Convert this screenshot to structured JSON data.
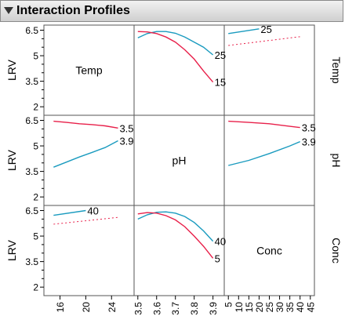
{
  "header": {
    "title": "Interaction Profiles"
  },
  "chart_data": {
    "type": "line",
    "title": "Interaction Profiles",
    "response": "LRV",
    "factors": [
      "Temp",
      "pH",
      "Conc"
    ],
    "colors": {
      "high": "#1a9bbf",
      "low": "#e8204a"
    },
    "row_labels": [
      "Temp",
      "pH",
      "Conc"
    ],
    "y_axis": {
      "label": "LRV",
      "ylim": [
        1.5,
        6.8
      ],
      "ticks": [
        "6.5",
        "5",
        "3.5",
        "2"
      ],
      "tick_values": [
        6.5,
        5,
        3.5,
        2
      ],
      "minor_ticks": [
        6,
        5.5,
        4.5,
        4,
        3,
        2.5
      ]
    },
    "x_axes": [
      {
        "factor": "Temp",
        "xlim": [
          13.5,
          27.5
        ],
        "ticks": [
          "16",
          "20",
          "24"
        ],
        "tick_values": [
          16,
          20,
          24
        ]
      },
      {
        "factor": "pH",
        "xlim": [
          3.48,
          3.96
        ],
        "ticks": [
          "3.5",
          "3.6",
          "3.7",
          "3.8",
          "3.9"
        ],
        "tick_values": [
          3.5,
          3.6,
          3.7,
          3.8,
          3.9
        ]
      },
      {
        "factor": "Conc",
        "xlim": [
          3,
          47
        ],
        "ticks": [
          "5",
          "10",
          "15",
          "20",
          "25",
          "30",
          "35",
          "40",
          "45"
        ],
        "tick_values": [
          5,
          10,
          15,
          20,
          25,
          30,
          35,
          40,
          45
        ]
      }
    ],
    "panels": [
      {
        "row": 0,
        "col": 1,
        "x_factor": "pH",
        "trace_factor": "Temp",
        "series": [
          {
            "name": "25",
            "color": "#1a9bbf",
            "x": [
              3.5,
              3.55,
              3.6,
              3.65,
              3.7,
              3.75,
              3.8,
              3.85,
              3.9
            ],
            "y": [
              6.05,
              6.3,
              6.42,
              6.42,
              6.32,
              6.1,
              5.8,
              5.5,
              5.05
            ]
          },
          {
            "name": "15",
            "color": "#e8204a",
            "x": [
              3.5,
              3.55,
              3.6,
              3.65,
              3.7,
              3.75,
              3.8,
              3.85,
              3.9
            ],
            "y": [
              6.42,
              6.4,
              6.3,
              6.1,
              5.8,
              5.35,
              4.8,
              4.1,
              3.45
            ]
          }
        ]
      },
      {
        "row": 0,
        "col": 2,
        "x_factor": "Conc",
        "trace_factor": "Temp",
        "series": [
          {
            "name": "25",
            "color": "#1a9bbf",
            "x": [
              5,
              20
            ],
            "y": [
              6.3,
              6.58
            ]
          },
          {
            "name": "",
            "color": "#e8204a",
            "dashed": true,
            "x": [
              5,
              40
            ],
            "y": [
              5.6,
              6.12
            ]
          }
        ]
      },
      {
        "row": 1,
        "col": 0,
        "x_factor": "Temp",
        "trace_factor": "pH",
        "series": [
          {
            "name": "3.5",
            "color": "#e8204a",
            "x": [
              15,
              17,
              19,
              21,
              23,
              25
            ],
            "y": [
              6.45,
              6.38,
              6.3,
              6.25,
              6.18,
              6.05
            ]
          },
          {
            "name": "3.9",
            "color": "#1a9bbf",
            "x": [
              15,
              17,
              19,
              21,
              23,
              25
            ],
            "y": [
              3.75,
              4.05,
              4.35,
              4.62,
              4.9,
              5.3
            ]
          }
        ]
      },
      {
        "row": 1,
        "col": 2,
        "x_factor": "Conc",
        "trace_factor": "pH",
        "series": [
          {
            "name": "3.5",
            "color": "#e8204a",
            "x": [
              5,
              15,
              25,
              35,
              40
            ],
            "y": [
              6.45,
              6.38,
              6.3,
              6.15,
              6.08
            ]
          },
          {
            "name": "3.9",
            "color": "#1a9bbf",
            "x": [
              5,
              15,
              25,
              35,
              40
            ],
            "y": [
              3.85,
              4.15,
              4.55,
              5.0,
              5.25
            ]
          }
        ]
      },
      {
        "row": 2,
        "col": 0,
        "x_factor": "Temp",
        "trace_factor": "Conc",
        "series": [
          {
            "name": "40",
            "color": "#1a9bbf",
            "x": [
              15,
              20
            ],
            "y": [
              6.22,
              6.5
            ]
          },
          {
            "name": "",
            "color": "#e8204a",
            "dashed": true,
            "x": [
              15,
              25
            ],
            "y": [
              5.7,
              6.1
            ]
          }
        ]
      },
      {
        "row": 2,
        "col": 1,
        "x_factor": "pH",
        "trace_factor": "Conc",
        "series": [
          {
            "name": "40",
            "color": "#1a9bbf",
            "x": [
              3.5,
              3.55,
              3.6,
              3.65,
              3.7,
              3.75,
              3.8,
              3.85,
              3.9
            ],
            "y": [
              6.0,
              6.25,
              6.4,
              6.42,
              6.35,
              6.15,
              5.8,
              5.3,
              4.7
            ]
          },
          {
            "name": "5",
            "color": "#e8204a",
            "x": [
              3.5,
              3.55,
              3.6,
              3.65,
              3.7,
              3.75,
              3.8,
              3.85,
              3.9
            ],
            "y": [
              6.3,
              6.38,
              6.35,
              6.2,
              5.95,
              5.55,
              5.0,
              4.4,
              3.7
            ]
          }
        ]
      }
    ]
  }
}
